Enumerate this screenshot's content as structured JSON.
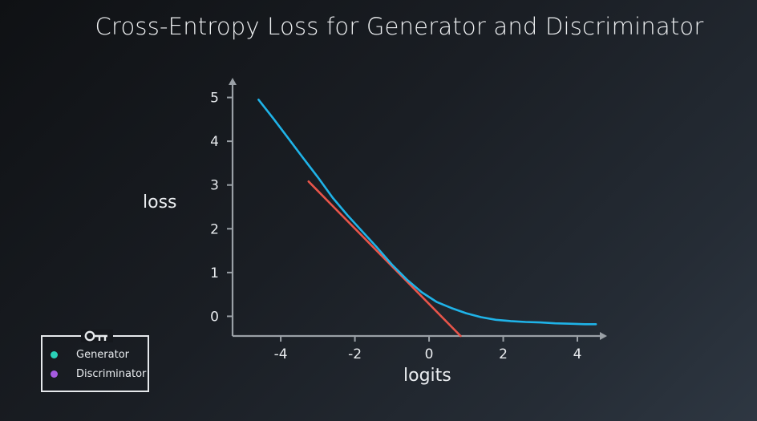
{
  "colors": {
    "axis": "#9aa0a6",
    "text": "#e9ecef",
    "generator": "#1fb3e8",
    "discriminator": "#e8554a",
    "legend_generator_dot": "#2ad1b8",
    "legend_discriminator_dot": "#a65be0"
  },
  "legend": {
    "icon": "key-icon",
    "items": [
      {
        "label": "Generator"
      },
      {
        "label": "Discriminator"
      }
    ]
  },
  "chart_data": {
    "type": "line",
    "title": "Cross-Entropy Loss for Generator and Discriminator",
    "xlabel": "logits",
    "ylabel": "loss",
    "xlim": [
      -5.3,
      4.8
    ],
    "ylim": [
      -0.45,
      5.45
    ],
    "xticks": [
      "-4",
      "-2",
      "0",
      "2",
      "4"
    ],
    "xtick_values": [
      -4,
      -2,
      0,
      2,
      4
    ],
    "yticks": [
      "0",
      "1",
      "2",
      "3",
      "4",
      "5"
    ],
    "ytick_values": [
      0,
      1,
      2,
      3,
      4,
      5
    ],
    "grid": false,
    "legend_position": "bottom-left",
    "series": [
      {
        "x": [
          -4.6,
          -4.2,
          -3.8,
          -3.4,
          -3.0,
          -2.6,
          -2.2,
          -1.8,
          -1.4,
          -1.0,
          -0.6,
          -0.2,
          0.2,
          0.6,
          1.0,
          1.4,
          1.8,
          2.2,
          2.6,
          3.0,
          3.4,
          3.8,
          4.2,
          4.5
        ],
        "y": [
          4.95,
          4.52,
          4.07,
          3.62,
          3.18,
          2.71,
          2.31,
          1.94,
          1.57,
          1.18,
          0.84,
          0.55,
          0.33,
          0.19,
          0.07,
          -0.02,
          -0.08,
          -0.11,
          -0.13,
          -0.14,
          -0.16,
          -0.17,
          -0.18,
          -0.18
        ]
      },
      {
        "x": [
          -3.25,
          0.85
        ],
        "y": [
          3.08,
          -0.45
        ]
      }
    ]
  }
}
